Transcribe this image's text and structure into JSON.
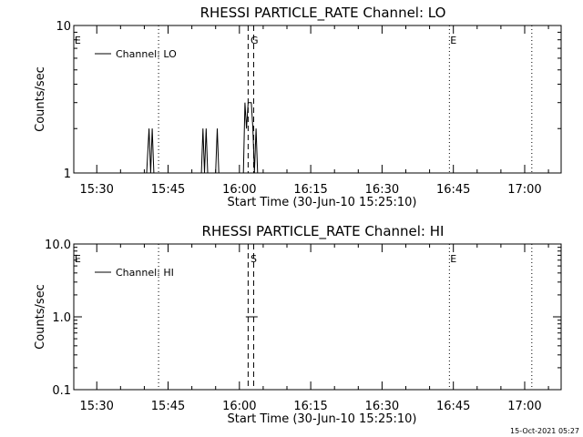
{
  "footer": {
    "timestamp": "15-Oct-2021 05:27"
  },
  "chart_data": [
    {
      "type": "line",
      "title": "RHESSI PARTICLE_RATE Channel: LO",
      "xlabel": "Start Time (30-Jun-10 15:25:10)",
      "ylabel": "Counts/sec",
      "y_scale": "log",
      "ylim": [
        1,
        10
      ],
      "y_ticks": [
        {
          "value": 1,
          "label": "1"
        },
        {
          "value": 10,
          "label": "10"
        }
      ],
      "xlim": [
        "15:25:10",
        "17:07:40"
      ],
      "x_ticks": [
        "15:30",
        "15:45",
        "16:00",
        "16:15",
        "16:30",
        "16:45",
        "17:00"
      ],
      "legend": {
        "position": "top-left",
        "entries": [
          "Channel: LO"
        ]
      },
      "series": [
        {
          "name": "Channel: LO",
          "x": [
            "15:40:30",
            "15:41:00",
            "15:41:20",
            "15:41:40",
            "15:42:00",
            "15:42:20",
            "15:52:00",
            "15:52:20",
            "15:52:40",
            "15:53:00",
            "15:53:20",
            "15:53:40",
            "15:55:00",
            "15:55:20",
            "15:55:40",
            "16:00:50",
            "16:01:10",
            "16:01:30",
            "16:01:50",
            "16:02:10",
            "16:02:30",
            "16:02:50",
            "16:03:10",
            "16:03:30",
            "16:03:50"
          ],
          "y": [
            1,
            2,
            1,
            2,
            1,
            1,
            1,
            2,
            1,
            2,
            1,
            1,
            1,
            2,
            1,
            1,
            3,
            2,
            3,
            3,
            3,
            2,
            1,
            2,
            1
          ]
        }
      ],
      "vlines": [
        {
          "x": "15:43:00",
          "style": "dotted",
          "label": ""
        },
        {
          "x": "16:01:50",
          "style": "dashed",
          "label": ""
        },
        {
          "x": "16:03:00",
          "style": "dashed",
          "label": ""
        },
        {
          "x": "16:44:10",
          "style": "dotted",
          "label": ""
        },
        {
          "x": "17:01:30",
          "style": "dotted",
          "label": ""
        }
      ],
      "markers": [
        {
          "x": "15:25:20",
          "label": "E"
        },
        {
          "x": "16:02:20",
          "label": "G"
        },
        {
          "x": "16:44:20",
          "label": "E"
        }
      ]
    },
    {
      "type": "line",
      "title": "RHESSI PARTICLE_RATE Channel: HI",
      "xlabel": "Start Time (30-Jun-10 15:25:10)",
      "ylabel": "Counts/sec",
      "y_scale": "log",
      "ylim": [
        0.1,
        10
      ],
      "y_ticks": [
        {
          "value": 0.1,
          "label": "0.1"
        },
        {
          "value": 1,
          "label": "1.0"
        },
        {
          "value": 10,
          "label": "10.0"
        }
      ],
      "xlim": [
        "15:25:10",
        "17:07:40"
      ],
      "x_ticks": [
        "15:30",
        "15:45",
        "16:00",
        "16:15",
        "16:30",
        "16:45",
        "17:00"
      ],
      "legend": {
        "position": "top-left",
        "entries": [
          "Channel: HI"
        ]
      },
      "series": [
        {
          "name": "Channel: HI",
          "x": [
            "16:01:20",
            "16:03:50"
          ],
          "y": [
            1,
            1
          ]
        }
      ],
      "segments": [
        {
          "x": [
            "17:06:10",
            "17:07:40"
          ],
          "y": [
            1,
            1
          ]
        }
      ],
      "vlines": [
        {
          "x": "15:43:00",
          "style": "dotted",
          "label": ""
        },
        {
          "x": "16:01:50",
          "style": "dashed",
          "label": ""
        },
        {
          "x": "16:03:00",
          "style": "dashed",
          "label": ""
        },
        {
          "x": "16:44:10",
          "style": "dotted",
          "label": ""
        },
        {
          "x": "17:01:30",
          "style": "dotted",
          "label": ""
        }
      ],
      "markers": [
        {
          "x": "15:25:20",
          "label": "E"
        },
        {
          "x": "16:02:20",
          "label": "S"
        },
        {
          "x": "16:44:20",
          "label": "E"
        }
      ]
    }
  ]
}
